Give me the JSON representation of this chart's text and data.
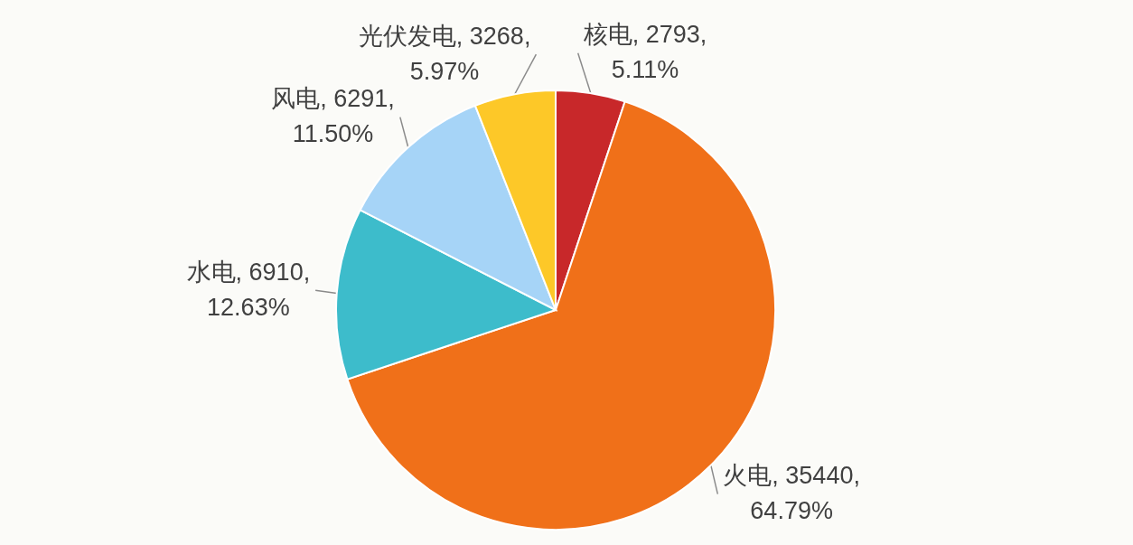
{
  "chart_data": {
    "type": "pie",
    "categories": [
      "核电",
      "火电",
      "水电",
      "风电",
      "光伏发电"
    ],
    "values": [
      2793,
      35440,
      6910,
      6291,
      3268
    ],
    "colors": [
      "#c8282a",
      "#f07019",
      "#3dbccb",
      "#a6d4f7",
      "#fdc828"
    ],
    "value_labels": [
      "2793,\n5.11%",
      "35440,\n64.79%",
      "6910,\n12.63%",
      "6291,\n11.50%",
      "3268,\n5.97%"
    ]
  }
}
